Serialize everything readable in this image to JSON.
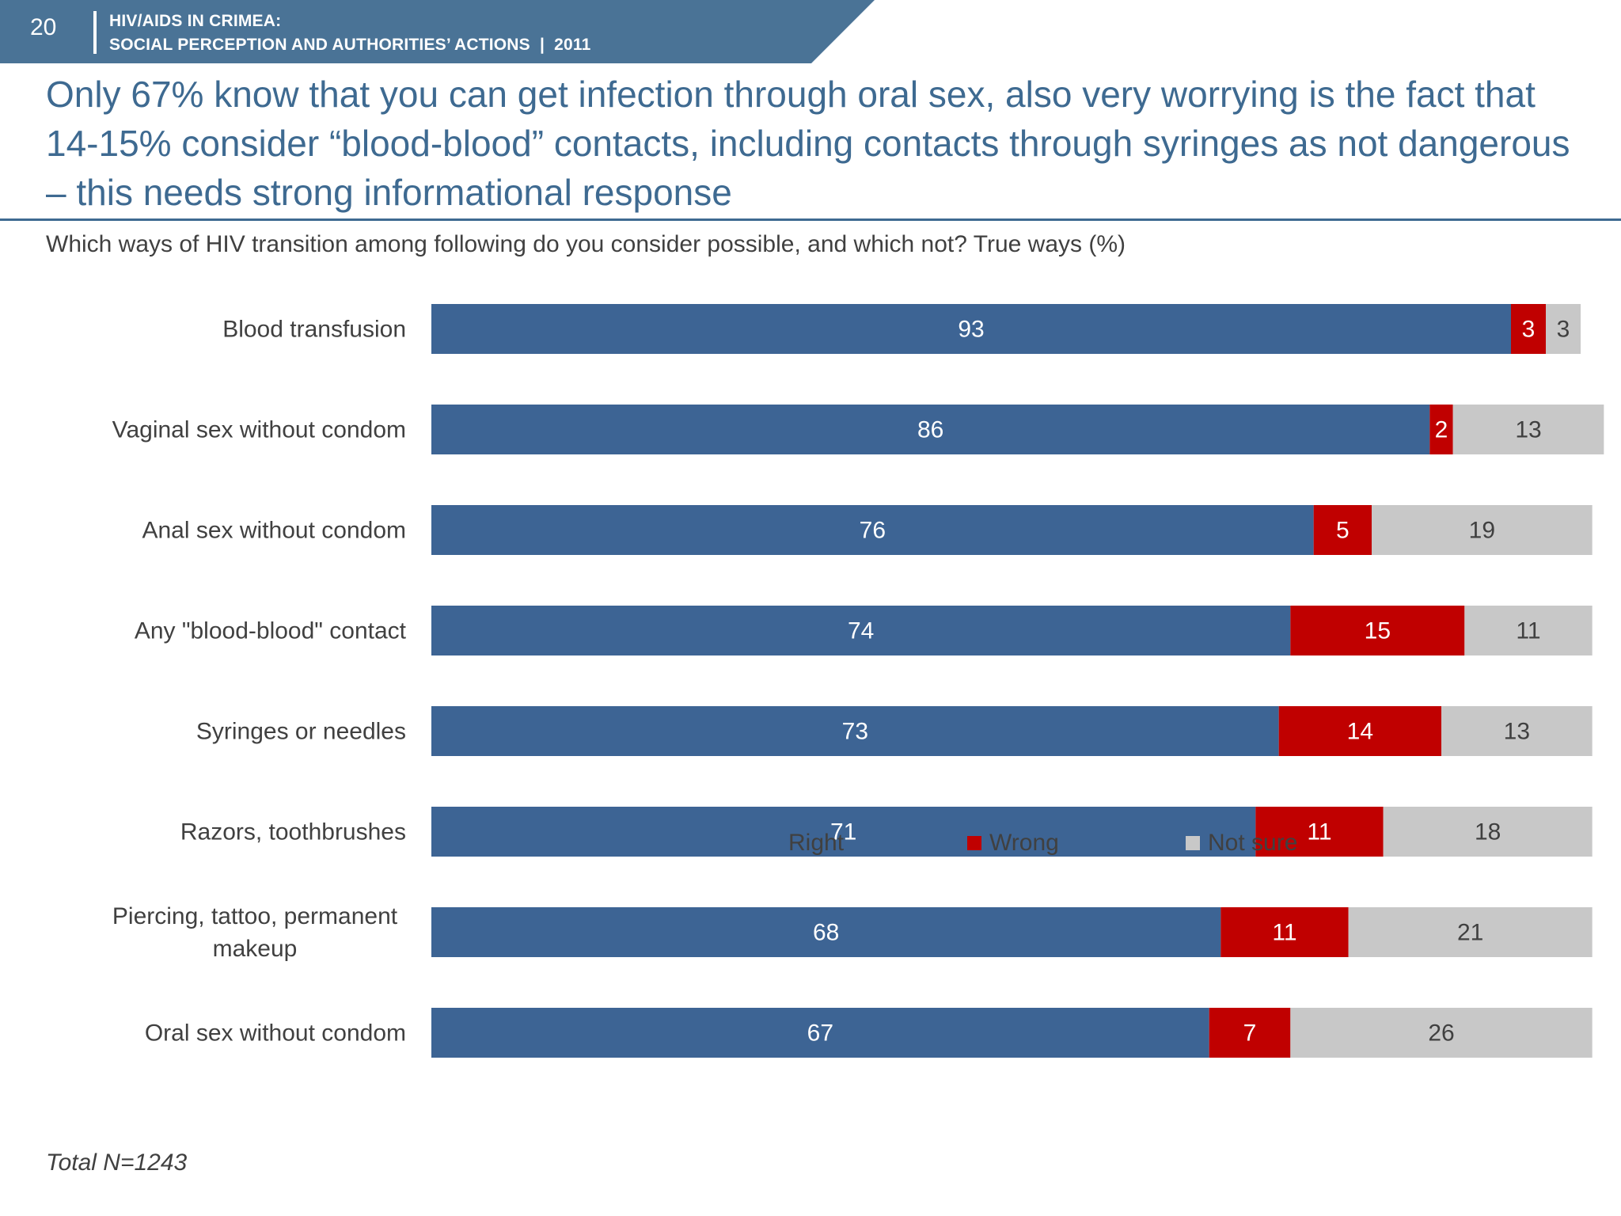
{
  "header": {
    "page_number": "20",
    "line1": "HIV/AIDS IN CRIMEA:",
    "line2": "SOCIAL PERCEPTION AND AUTHORITIES’ ACTIONS  |  2011"
  },
  "headline": "Only 67% know that you can get infection through oral sex, also very worrying is the fact that 14-15% consider “blood-blood” contacts, including contacts through syringes as not dangerous – this needs strong informational response",
  "footnote": "Total N=1243",
  "chart_data": {
    "type": "bar",
    "orientation": "horizontal",
    "stacked": true,
    "title": "Which ways of HIV transition among following do you consider possible, and which not? True ways (%)",
    "categories": [
      [
        "Blood transfusion"
      ],
      [
        "Vaginal sex without condom"
      ],
      [
        "Anal sex without condom"
      ],
      [
        "Any \"blood-blood\" contact"
      ],
      [
        "Syringes or needles"
      ],
      [
        "Razors, toothbrushes"
      ],
      [
        "Piercing, tattoo, permanent",
        "makeup"
      ],
      [
        "Oral sex without condom"
      ]
    ],
    "series": [
      {
        "name": "Right",
        "color": "#3d6494",
        "label_color": "#ffffff",
        "values": [
          93,
          86,
          76,
          74,
          73,
          71,
          68,
          67
        ]
      },
      {
        "name": "Wrong",
        "color": "#c00000",
        "label_color": "#ffffff",
        "values": [
          3,
          2,
          5,
          15,
          14,
          11,
          11,
          7
        ]
      },
      {
        "name": "Not sure",
        "color": "#c8c8c8",
        "label_color": "#404040",
        "values": [
          3,
          13,
          19,
          11,
          13,
          18,
          21,
          26
        ]
      }
    ],
    "xlim": [
      0,
      99
    ],
    "legend_position": "bottom",
    "grid": false
  },
  "colors": {
    "header_band": "#4a7396",
    "headline": "#3e6a91"
  }
}
